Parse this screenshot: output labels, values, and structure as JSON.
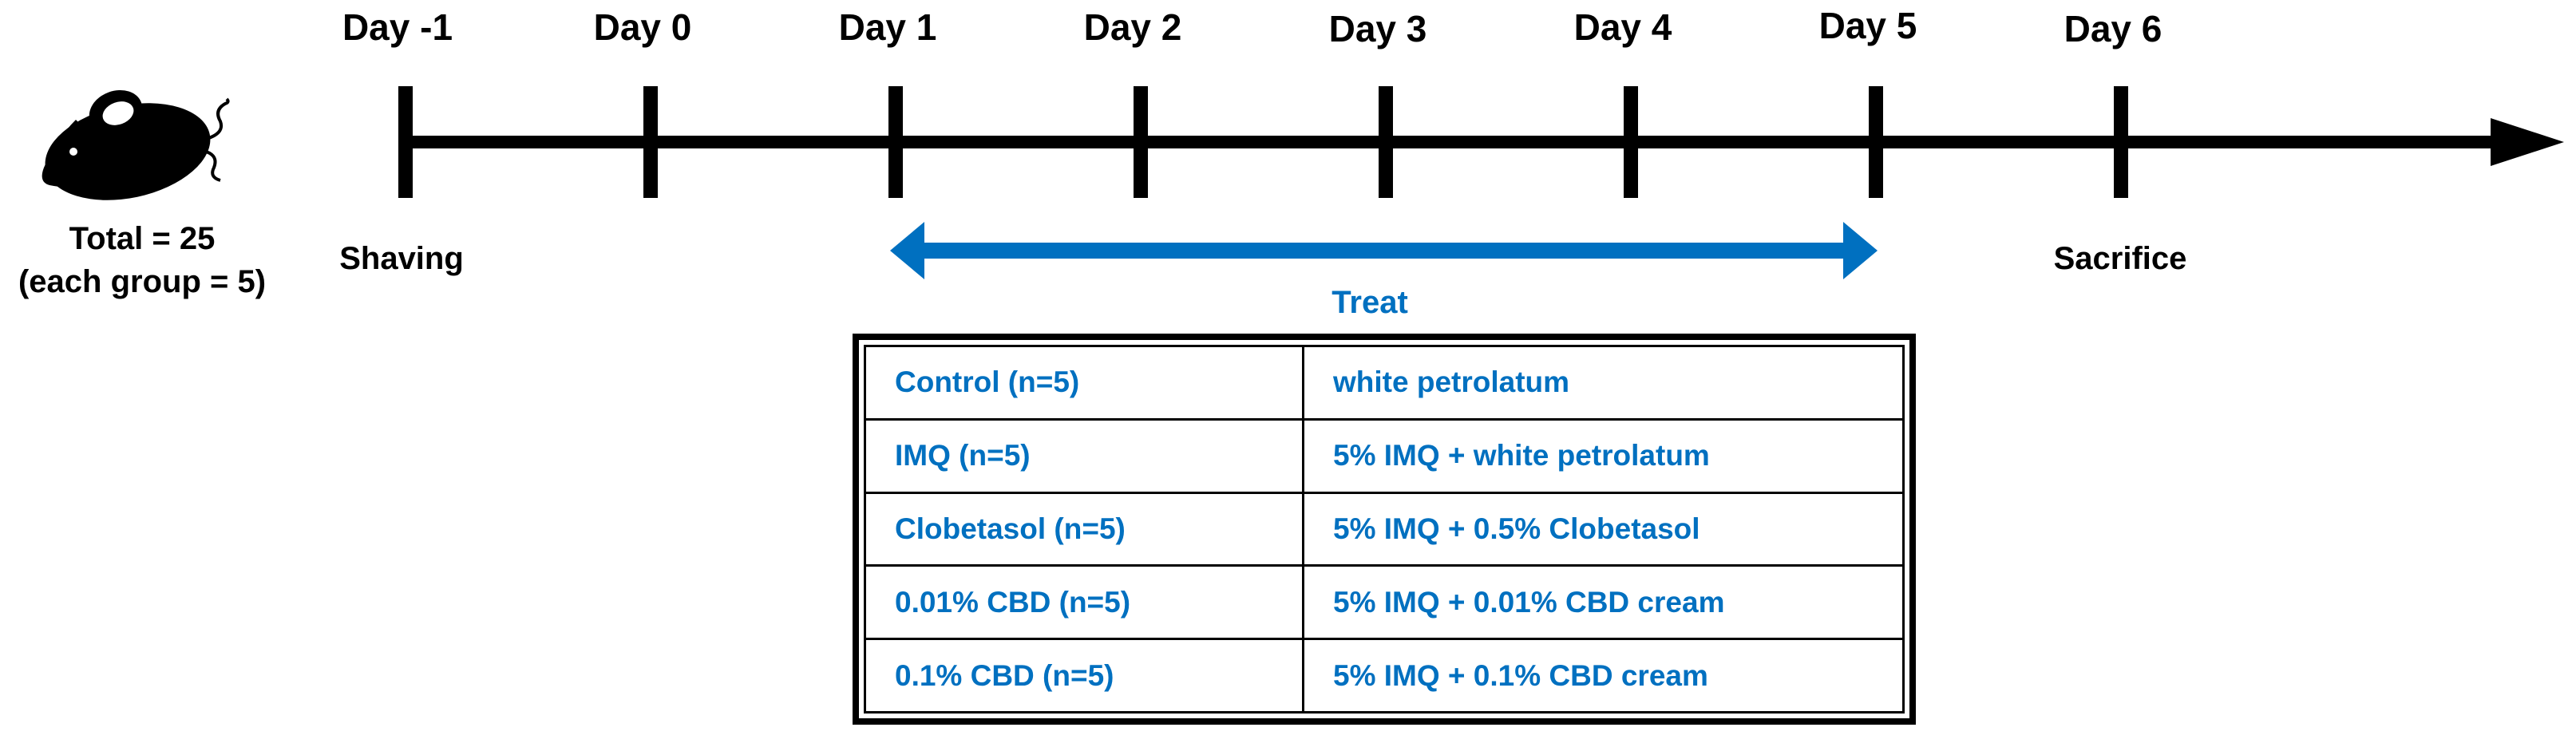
{
  "colors": {
    "timeline": "#000000",
    "treat": "#0070c0",
    "text": "#000000"
  },
  "subjects": {
    "icon": "mouse-icon",
    "total_line": "Total = 25",
    "group_line": "(each group = 5)"
  },
  "timeline": {
    "days": [
      {
        "label": "Day -1"
      },
      {
        "label": "Day 0"
      },
      {
        "label": "Day 1"
      },
      {
        "label": "Day 2"
      },
      {
        "label": "Day 3"
      },
      {
        "label": "Day 4"
      },
      {
        "label": "Day 5"
      },
      {
        "label": "Day 6"
      }
    ],
    "events": {
      "shaving": "Shaving",
      "sacrifice": "Sacrifice"
    }
  },
  "treatment": {
    "label": "Treat",
    "start_day": "Day 1",
    "end_day": "Day 5",
    "groups": [
      {
        "group": "Control (n=5)",
        "regimen": "white petrolatum"
      },
      {
        "group": "IMQ (n=5)",
        "regimen": "5% IMQ + white petrolatum"
      },
      {
        "group": "Clobetasol (n=5)",
        "regimen": "5% IMQ + 0.5% Clobetasol"
      },
      {
        "group": "0.01% CBD (n=5)",
        "regimen": "5% IMQ + 0.01% CBD cream"
      },
      {
        "group": "0.1% CBD (n=5)",
        "regimen": "5% IMQ + 0.1% CBD cream"
      }
    ]
  }
}
